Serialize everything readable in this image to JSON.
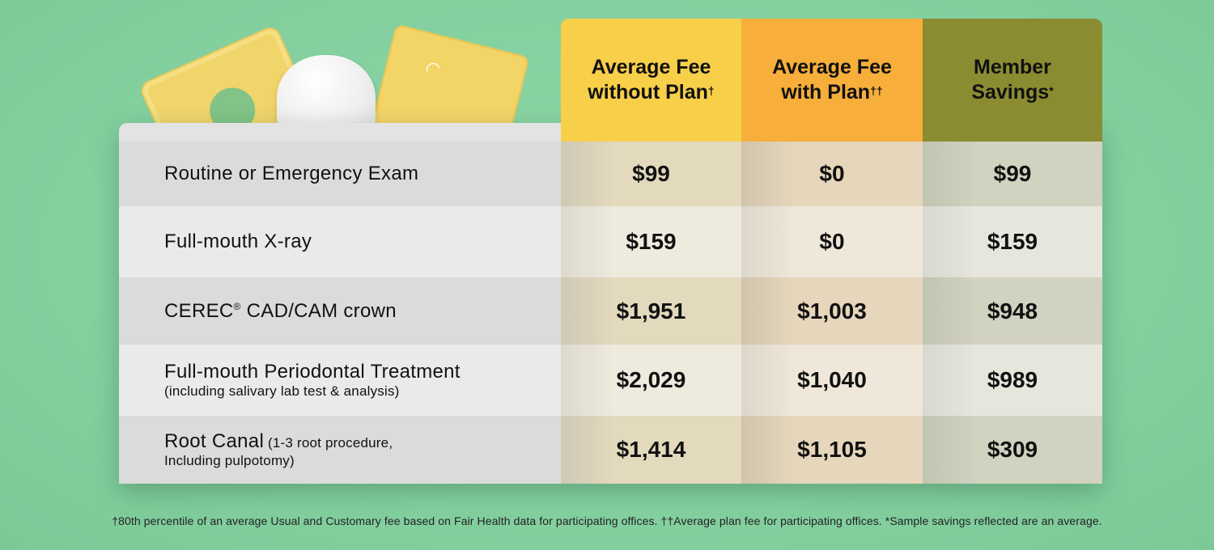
{
  "colors": {
    "background": "#84d09f",
    "header_without_plan": "#f8cf49",
    "header_with_plan": "#f7ae3a",
    "header_savings": "#8b8c32"
  },
  "decoration": {
    "icons": [
      "dollar-bill-icon",
      "tooth-icon",
      "card-icon",
      "wifi-icon"
    ]
  },
  "headers": {
    "without_plan": {
      "line1": "Average Fee",
      "line2": "without Plan",
      "mark": "†"
    },
    "with_plan": {
      "line1": "Average Fee",
      "line2": "with Plan",
      "mark": "††"
    },
    "savings": {
      "line1": "Member",
      "line2": "Savings",
      "mark": "*"
    }
  },
  "rows": [
    {
      "procedure": "Routine or Emergency Exam",
      "without_plan": "$99",
      "with_plan": "$0",
      "savings": "$99"
    },
    {
      "procedure": "Full-mouth X-ray",
      "without_plan": "$159",
      "with_plan": "$0",
      "savings": "$159"
    },
    {
      "procedure": "CEREC",
      "procedure_mark": "®",
      "procedure_rest": " CAD/CAM crown",
      "without_plan": "$1,951",
      "with_plan": "$1,003",
      "savings": "$948"
    },
    {
      "procedure": "Full-mouth Periodontal Treatment",
      "procedure_sub": "(including salivary lab test & analysis)",
      "without_plan": "$2,029",
      "with_plan": "$1,040",
      "savings": "$989"
    },
    {
      "procedure": "Root Canal",
      "procedure_inline_sub": " (1-3 root procedure,",
      "procedure_sub": "Including pulpotomy)",
      "without_plan": "$1,414",
      "with_plan": "$1,105",
      "savings": "$309"
    }
  ],
  "footnote": "†80th percentile of an average Usual and Customary fee based on Fair Health data for participating offices. ††Average plan fee for participating offices. *Sample savings reflected are an average."
}
